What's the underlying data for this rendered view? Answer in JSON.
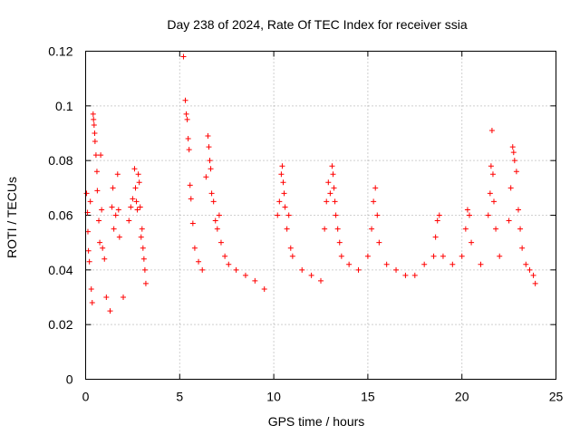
{
  "chart_data": {
    "type": "scatter",
    "title": "Day 238 of 2024, Rate Of TEC Index for receiver ssia",
    "xlabel": "GPS time / hours",
    "ylabel": "ROTI / TECUs",
    "xlim": [
      0,
      25
    ],
    "ylim": [
      0,
      0.12
    ],
    "xticks": [
      0,
      5,
      10,
      15,
      20,
      25
    ],
    "xtick_labels": [
      "0",
      "5",
      "10",
      "15",
      "20",
      "25"
    ],
    "yticks": [
      0,
      0.02,
      0.04,
      0.06,
      0.08,
      0.1,
      0.12
    ],
    "ytick_labels": [
      "0",
      "0.02",
      "0.04",
      "0.06",
      "0.08",
      "0.1",
      "0.12"
    ],
    "grid": true,
    "marker": "+",
    "color": "#ff0000",
    "data_gap_hours": [
      3.3,
      5.1
    ],
    "series": [
      {
        "points": [
          [
            0.05,
            0.068
          ],
          [
            0.1,
            0.061
          ],
          [
            0.12,
            0.054
          ],
          [
            0.15,
            0.047
          ],
          [
            0.2,
            0.043
          ],
          [
            0.25,
            0.065
          ],
          [
            0.3,
            0.033
          ],
          [
            0.35,
            0.028
          ],
          [
            0.4,
            0.097
          ],
          [
            0.42,
            0.095
          ],
          [
            0.45,
            0.093
          ],
          [
            0.48,
            0.09
          ],
          [
            0.5,
            0.087
          ],
          [
            0.55,
            0.082
          ],
          [
            0.6,
            0.076
          ],
          [
            0.62,
            0.069
          ],
          [
            0.7,
            0.058
          ],
          [
            0.75,
            0.05
          ],
          [
            0.8,
            0.082
          ],
          [
            0.85,
            0.062
          ],
          [
            0.9,
            0.048
          ],
          [
            1.0,
            0.044
          ],
          [
            1.1,
            0.03
          ],
          [
            1.3,
            0.025
          ],
          [
            1.4,
            0.063
          ],
          [
            1.45,
            0.07
          ],
          [
            1.5,
            0.055
          ],
          [
            1.6,
            0.06
          ],
          [
            1.7,
            0.075
          ],
          [
            1.75,
            0.062
          ],
          [
            1.8,
            0.052
          ],
          [
            2.0,
            0.03
          ],
          [
            2.3,
            0.058
          ],
          [
            2.4,
            0.063
          ],
          [
            2.5,
            0.066
          ],
          [
            2.6,
            0.077
          ],
          [
            2.65,
            0.07
          ],
          [
            2.7,
            0.065
          ],
          [
            2.75,
            0.062
          ],
          [
            2.8,
            0.075
          ],
          [
            2.85,
            0.072
          ],
          [
            2.9,
            0.063
          ],
          [
            2.95,
            0.052
          ],
          [
            3.0,
            0.055
          ],
          [
            3.05,
            0.048
          ],
          [
            3.1,
            0.044
          ],
          [
            3.15,
            0.04
          ],
          [
            3.2,
            0.035
          ],
          [
            5.2,
            0.118
          ],
          [
            5.3,
            0.102
          ],
          [
            5.35,
            0.097
          ],
          [
            5.4,
            0.095
          ],
          [
            5.45,
            0.088
          ],
          [
            5.5,
            0.084
          ],
          [
            5.55,
            0.071
          ],
          [
            5.6,
            0.066
          ],
          [
            5.7,
            0.057
          ],
          [
            5.8,
            0.048
          ],
          [
            6.0,
            0.043
          ],
          [
            6.2,
            0.04
          ],
          [
            6.4,
            0.074
          ],
          [
            6.5,
            0.089
          ],
          [
            6.55,
            0.085
          ],
          [
            6.6,
            0.08
          ],
          [
            6.65,
            0.077
          ],
          [
            6.7,
            0.068
          ],
          [
            6.8,
            0.065
          ],
          [
            6.9,
            0.058
          ],
          [
            7.0,
            0.055
          ],
          [
            7.1,
            0.06
          ],
          [
            7.2,
            0.05
          ],
          [
            7.4,
            0.045
          ],
          [
            7.6,
            0.042
          ],
          [
            8.0,
            0.04
          ],
          [
            8.5,
            0.038
          ],
          [
            9.0,
            0.036
          ],
          [
            9.5,
            0.033
          ],
          [
            10.2,
            0.06
          ],
          [
            10.3,
            0.065
          ],
          [
            10.4,
            0.075
          ],
          [
            10.45,
            0.078
          ],
          [
            10.5,
            0.072
          ],
          [
            10.55,
            0.068
          ],
          [
            10.6,
            0.063
          ],
          [
            10.7,
            0.055
          ],
          [
            10.8,
            0.06
          ],
          [
            10.9,
            0.048
          ],
          [
            11.0,
            0.045
          ],
          [
            11.5,
            0.04
          ],
          [
            12.0,
            0.038
          ],
          [
            12.5,
            0.036
          ],
          [
            12.7,
            0.055
          ],
          [
            12.8,
            0.065
          ],
          [
            12.9,
            0.072
          ],
          [
            13.0,
            0.068
          ],
          [
            13.1,
            0.078
          ],
          [
            13.15,
            0.075
          ],
          [
            13.2,
            0.07
          ],
          [
            13.25,
            0.065
          ],
          [
            13.3,
            0.06
          ],
          [
            13.4,
            0.055
          ],
          [
            13.5,
            0.05
          ],
          [
            13.6,
            0.045
          ],
          [
            14.0,
            0.042
          ],
          [
            14.5,
            0.04
          ],
          [
            15.0,
            0.045
          ],
          [
            15.2,
            0.055
          ],
          [
            15.3,
            0.065
          ],
          [
            15.4,
            0.07
          ],
          [
            15.5,
            0.06
          ],
          [
            15.6,
            0.05
          ],
          [
            16.0,
            0.042
          ],
          [
            16.5,
            0.04
          ],
          [
            17.0,
            0.038
          ],
          [
            17.5,
            0.038
          ],
          [
            18.0,
            0.042
          ],
          [
            18.5,
            0.045
          ],
          [
            18.6,
            0.052
          ],
          [
            18.7,
            0.058
          ],
          [
            18.8,
            0.06
          ],
          [
            19.0,
            0.045
          ],
          [
            19.5,
            0.042
          ],
          [
            20.0,
            0.045
          ],
          [
            20.2,
            0.055
          ],
          [
            20.3,
            0.062
          ],
          [
            20.4,
            0.06
          ],
          [
            20.5,
            0.05
          ],
          [
            21.0,
            0.042
          ],
          [
            21.4,
            0.06
          ],
          [
            21.5,
            0.068
          ],
          [
            21.55,
            0.078
          ],
          [
            21.6,
            0.091
          ],
          [
            21.65,
            0.075
          ],
          [
            21.7,
            0.065
          ],
          [
            21.8,
            0.055
          ],
          [
            22.0,
            0.045
          ],
          [
            22.5,
            0.058
          ],
          [
            22.6,
            0.07
          ],
          [
            22.7,
            0.085
          ],
          [
            22.75,
            0.083
          ],
          [
            22.8,
            0.08
          ],
          [
            22.9,
            0.076
          ],
          [
            23.0,
            0.062
          ],
          [
            23.1,
            0.055
          ],
          [
            23.2,
            0.048
          ],
          [
            23.4,
            0.042
          ],
          [
            23.6,
            0.04
          ],
          [
            23.8,
            0.038
          ],
          [
            23.9,
            0.035
          ]
        ]
      }
    ]
  }
}
